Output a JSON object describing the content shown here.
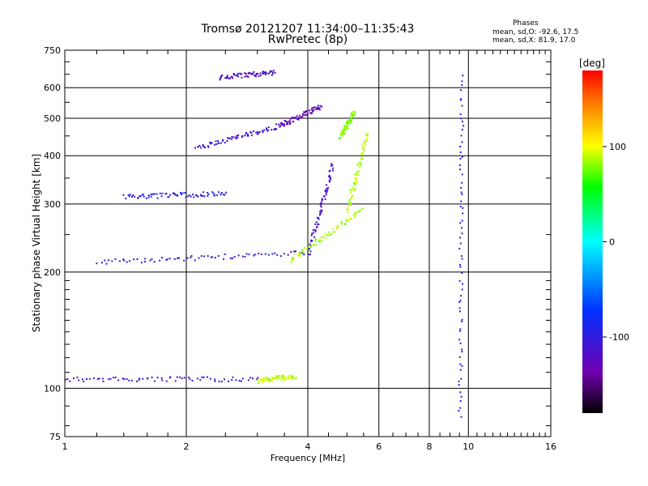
{
  "header": {
    "title": "Tromsø 20121207 11:34:00–11:35:43",
    "subtitle": "RwPretec (8p)",
    "stats_title": "Phases",
    "stats_line1": "mean, sd,O: -92.6, 17.5",
    "stats_line2": "mean, sd,X: 81.9, 17.0"
  },
  "chart_data": {
    "type": "scatter",
    "title": "Tromsø 20121207 11:34:00–11:35:43",
    "subtitle": "RwPretec (8p)",
    "xlabel": "Frequency [MHz]",
    "ylabel": "Stationary phase Virtual Height [km]",
    "xscale": "log",
    "yscale": "log",
    "xlim": [
      1,
      16
    ],
    "ylim": [
      75,
      750
    ],
    "xticks": [
      "1",
      "2",
      "4",
      "6",
      "8",
      "10",
      "16"
    ],
    "yticks": [
      "75",
      "100",
      "200",
      "300",
      "400",
      "500",
      "600",
      "750"
    ],
    "grid": true,
    "colorbar": {
      "label": "[deg]",
      "range": [
        -180,
        180
      ],
      "ticks": [
        "100",
        "0",
        "-100"
      ],
      "tick_values": [
        100,
        0,
        -100
      ]
    },
    "series": [
      {
        "name": "O",
        "traces": [
          {
            "x": [
              1.0,
              3.0
            ],
            "y": [
              106,
              106
            ],
            "phase": -110
          },
          {
            "x": [
              1.2,
              4.0
            ],
            "y": [
              213,
              225
            ],
            "phase": -105
          },
          {
            "x": [
              4.0,
              4.6
            ],
            "y": [
              225,
              380
            ],
            "phase": -110
          },
          {
            "x": [
              2.1,
              3.4
            ],
            "y": [
              420,
              480
            ],
            "phase": -110
          },
          {
            "x": [
              3.4,
              4.3
            ],
            "y": [
              480,
              540
            ],
            "phase": -130
          },
          {
            "x": [
              2.4,
              3.3
            ],
            "y": [
              640,
              660
            ],
            "phase": -115
          },
          {
            "x": [
              1.4,
              2.5
            ],
            "y": [
              315,
              320
            ],
            "phase": -95
          },
          {
            "x": [
              9.5,
              9.6
            ],
            "y": [
              85,
              640
            ],
            "phase": -100
          }
        ]
      },
      {
        "name": "X",
        "traces": [
          {
            "x": [
              3.0,
              3.7
            ],
            "y": [
              105,
              108
            ],
            "phase": 90
          },
          {
            "x": [
              3.6,
              5.4
            ],
            "y": [
              215,
              290
            ],
            "phase": 85
          },
          {
            "x": [
              5.0,
              5.6
            ],
            "y": [
              290,
              460
            ],
            "phase": 90
          },
          {
            "x": [
              4.8,
              5.2
            ],
            "y": [
              450,
              520
            ],
            "phase": 80
          }
        ]
      }
    ]
  }
}
